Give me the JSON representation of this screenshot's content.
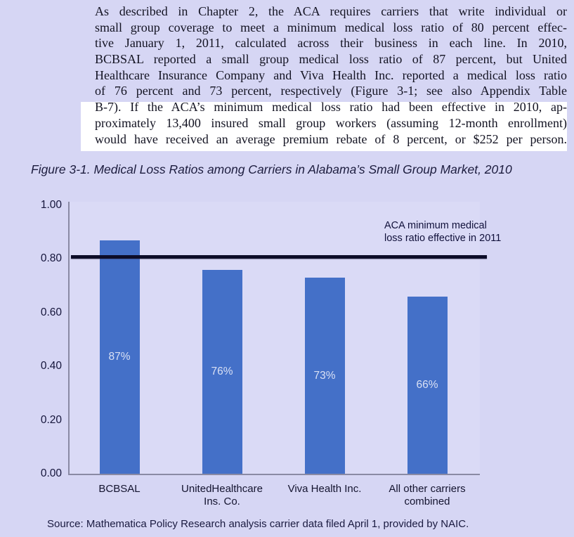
{
  "colors": {
    "page_background": "#d6d6f4",
    "highlight": "#ffffff",
    "bar_blue": "#4470c8",
    "reference_line": "#0c0c28",
    "axis_gray": "#8a8aa4"
  },
  "paragraph": {
    "lines": [
      "As described in Chapter 2, the ACA requires carriers that write individual or",
      "small group coverage to meet a minimum medical loss ratio of 80 percent effec-",
      "tive January 1, 2011, calculated across their business in each line. In 2010,",
      "BCBSAL reported a small group medical loss ratio of 87 percent, but United",
      "Healthcare Insurance Company and Viva Health Inc. reported a medical loss ratio",
      "of 76 percent and 73 percent, respectively (Figure 3-1; see also Appendix Table",
      "B-7). If the ACA’s minimum medical loss ratio had been effective in 2010, ap-",
      "proximately 13,400 insured small group workers (assuming 12-month enrollment)",
      "would have received an average premium rebate of 8 percent, or $252 per person."
    ],
    "highlight_start_line": 6
  },
  "figure_title": "Figure 3-1. Medical Loss Ratios among Carriers in Alabama’s Small Group Market, 2010",
  "chart_data": {
    "type": "bar",
    "title": "Figure 3-1. Medical Loss Ratios among Carriers in Alabama’s Small Group Market, 2010",
    "categories": [
      [
        "BCBSAL"
      ],
      [
        "UnitedHealthcare",
        "Ins. Co."
      ],
      [
        "Viva Health Inc."
      ],
      [
        "All other carriers",
        "combined"
      ]
    ],
    "values": [
      0.87,
      0.76,
      0.73,
      0.66
    ],
    "bar_labels": [
      "87%",
      "76%",
      "73%",
      "66%"
    ],
    "y_ticks": [
      "1.00",
      "0.80",
      "0.60",
      "0.40",
      "0.20",
      "0.00"
    ],
    "ylim": [
      0,
      1
    ],
    "grid": false,
    "legend": false,
    "reference_line": {
      "value": 0.8,
      "annotation_lines": [
        "ACA minimum medical",
        "loss ratio effective in 2011"
      ]
    }
  },
  "source_note": "Source: Mathematica Policy Research analysis carrier data filed April 1, provided by NAIC."
}
